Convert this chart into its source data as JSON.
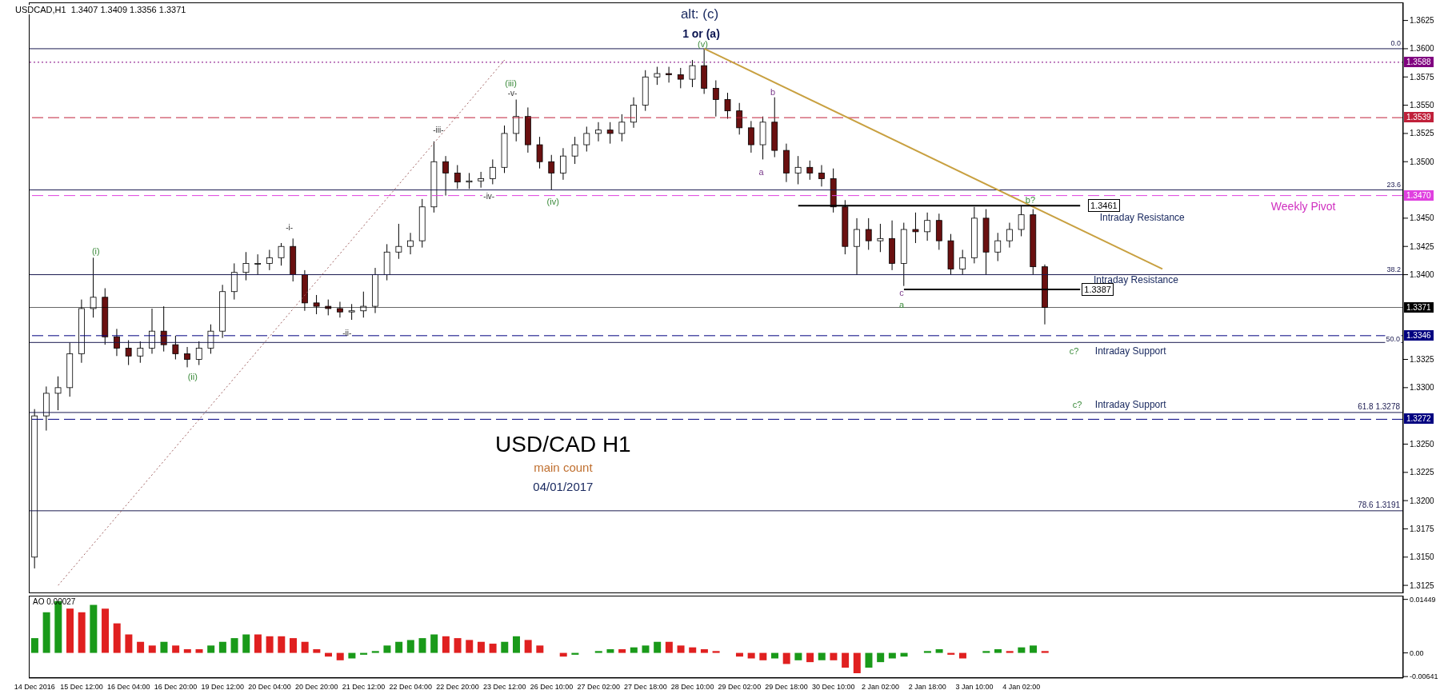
{
  "chart_data": [
    {
      "type": "candlestick",
      "title": "USD/CAD H1",
      "subtitle": "main count",
      "categories": [
        null,
        null,
        null,
        null,
        null,
        null,
        null,
        null,
        null,
        null,
        null,
        null,
        null,
        null,
        null,
        null,
        null,
        null,
        null,
        null,
        null,
        null,
        null,
        null,
        null,
        null,
        null,
        null,
        null,
        null,
        null,
        null,
        null,
        null,
        null,
        null,
        null,
        null,
        null,
        null,
        null,
        null,
        null,
        null,
        null,
        null,
        null,
        null,
        null,
        null,
        null,
        null,
        null,
        null,
        null,
        null,
        null,
        null,
        null,
        null,
        null,
        null,
        null,
        null,
        null,
        null,
        null,
        null,
        null,
        null,
        null,
        null,
        null,
        null,
        null,
        null,
        null,
        null,
        null,
        null,
        null,
        null,
        null,
        null,
        null,
        null,
        null,
        null,
        null,
        null,
        null,
        null,
        null,
        null,
        null,
        null,
        null,
        null,
        null,
        null,
        null,
        null,
        null,
        null,
        null,
        null,
        null,
        null,
        null,
        null,
        null,
        null,
        null,
        null,
        null,
        null,
        null
      ],
      "ohlc": [
        [
          1.315,
          1.3281,
          1.314,
          1.3275
        ],
        [
          1.3275,
          1.3301,
          1.3262,
          1.3295
        ],
        [
          1.3295,
          1.331,
          1.328,
          1.33
        ],
        [
          1.33,
          1.334,
          1.3292,
          1.333
        ],
        [
          1.333,
          1.3378,
          1.3322,
          1.337
        ],
        [
          1.337,
          1.3415,
          1.3362,
          1.338
        ],
        [
          1.338,
          1.3388,
          1.3338,
          1.3345
        ],
        [
          1.3345,
          1.3352,
          1.3328,
          1.3335
        ],
        [
          1.3335,
          1.3342,
          1.332,
          1.3328
        ],
        [
          1.3328,
          1.3341,
          1.3322,
          1.3335
        ],
        [
          1.3335,
          1.337,
          1.333,
          1.335
        ],
        [
          1.335,
          1.3372,
          1.3332,
          1.3338
        ],
        [
          1.3338,
          1.3346,
          1.3325,
          1.333
        ],
        [
          1.333,
          1.3336,
          1.3318,
          1.3325
        ],
        [
          1.3325,
          1.3341,
          1.332,
          1.3335
        ],
        [
          1.3335,
          1.3356,
          1.333,
          1.335
        ],
        [
          1.335,
          1.3391,
          1.3344,
          1.3385
        ],
        [
          1.3385,
          1.341,
          1.3378,
          1.3402
        ],
        [
          1.3402,
          1.342,
          1.3395,
          1.341
        ],
        [
          1.341,
          1.3418,
          1.34,
          1.341
        ],
        [
          1.341,
          1.3422,
          1.3404,
          1.3415
        ],
        [
          1.3415,
          1.3428,
          1.3408,
          1.3425
        ],
        [
          1.3425,
          1.3432,
          1.3394,
          1.34
        ],
        [
          1.34,
          1.3404,
          1.3368,
          1.3375
        ],
        [
          1.3375,
          1.3382,
          1.3365,
          1.3372
        ],
        [
          1.3372,
          1.3378,
          1.3364,
          1.337
        ],
        [
          1.337,
          1.3376,
          1.3362,
          1.3367
        ],
        [
          1.3367,
          1.3374,
          1.336,
          1.3368
        ],
        [
          1.3368,
          1.3385,
          1.3362,
          1.3372
        ],
        [
          1.3372,
          1.3406,
          1.3366,
          1.34
        ],
        [
          1.34,
          1.3427,
          1.3395,
          1.342
        ],
        [
          1.342,
          1.3445,
          1.3414,
          1.3425
        ],
        [
          1.3425,
          1.3437,
          1.3418,
          1.343
        ],
        [
          1.343,
          1.3467,
          1.3424,
          1.346
        ],
        [
          1.346,
          1.3518,
          1.3455,
          1.35
        ],
        [
          1.35,
          1.3505,
          1.347,
          1.349
        ],
        [
          1.349,
          1.3497,
          1.3476,
          1.3482
        ],
        [
          1.3482,
          1.349,
          1.3476,
          1.3483
        ],
        [
          1.3483,
          1.3491,
          1.3477,
          1.3485
        ],
        [
          1.3485,
          1.3502,
          1.348,
          1.3495
        ],
        [
          1.3495,
          1.3532,
          1.349,
          1.3525
        ],
        [
          1.3525,
          1.3555,
          1.3518,
          1.354
        ],
        [
          1.354,
          1.3548,
          1.3508,
          1.3515
        ],
        [
          1.3515,
          1.3522,
          1.3494,
          1.35
        ],
        [
          1.35,
          1.3506,
          1.3475,
          1.349
        ],
        [
          1.349,
          1.3512,
          1.3484,
          1.3505
        ],
        [
          1.3505,
          1.3522,
          1.3498,
          1.3515
        ],
        [
          1.3515,
          1.3531,
          1.3509,
          1.3525
        ],
        [
          1.3525,
          1.3535,
          1.3518,
          1.3528
        ],
        [
          1.3528,
          1.3535,
          1.3516,
          1.3525
        ],
        [
          1.3525,
          1.3542,
          1.3518,
          1.3535
        ],
        [
          1.3535,
          1.3557,
          1.353,
          1.355
        ],
        [
          1.355,
          1.3581,
          1.3545,
          1.3575
        ],
        [
          1.3575,
          1.3584,
          1.3568,
          1.3578
        ],
        [
          1.3578,
          1.3584,
          1.357,
          1.3577
        ],
        [
          1.3577,
          1.3583,
          1.3565,
          1.3573
        ],
        [
          1.3573,
          1.359,
          1.3566,
          1.3585
        ],
        [
          1.3585,
          1.36,
          1.356,
          1.3565
        ],
        [
          1.3565,
          1.3572,
          1.354,
          1.3555
        ],
        [
          1.3555,
          1.3561,
          1.3538,
          1.3545
        ],
        [
          1.3545,
          1.3552,
          1.3524,
          1.353
        ],
        [
          1.353,
          1.3536,
          1.3508,
          1.3515
        ],
        [
          1.3515,
          1.354,
          1.3502,
          1.3535
        ],
        [
          1.3535,
          1.3557,
          1.3504,
          1.351
        ],
        [
          1.351,
          1.3516,
          1.3482,
          1.349
        ],
        [
          1.349,
          1.3505,
          1.348,
          1.3495
        ],
        [
          1.3495,
          1.3501,
          1.3484,
          1.349
        ],
        [
          1.349,
          1.3497,
          1.3478,
          1.3485
        ],
        [
          1.3485,
          1.3494,
          1.3455,
          1.346
        ],
        [
          1.346,
          1.3466,
          1.3418,
          1.3425
        ],
        [
          1.3425,
          1.345,
          1.34,
          1.344
        ],
        [
          1.344,
          1.345,
          1.3422,
          1.343
        ],
        [
          1.343,
          1.3445,
          1.342,
          1.3432
        ],
        [
          1.3432,
          1.3448,
          1.3404,
          1.341
        ],
        [
          1.341,
          1.3446,
          1.339,
          1.344
        ],
        [
          1.344,
          1.3455,
          1.3428,
          1.3438
        ],
        [
          1.3438,
          1.3455,
          1.343,
          1.3448
        ],
        [
          1.3448,
          1.3454,
          1.3422,
          1.343
        ],
        [
          1.343,
          1.3436,
          1.34,
          1.3405
        ],
        [
          1.3405,
          1.3422,
          1.34,
          1.3415
        ],
        [
          1.3415,
          1.346,
          1.341,
          1.345
        ],
        [
          1.345,
          1.3458,
          1.34,
          1.342
        ],
        [
          1.342,
          1.3437,
          1.3412,
          1.343
        ],
        [
          1.343,
          1.3446,
          1.3424,
          1.344
        ],
        [
          1.344,
          1.3461,
          1.3434,
          1.3453
        ],
        [
          1.3453,
          1.3458,
          1.34,
          1.3407
        ],
        [
          1.3407,
          1.3409,
          1.3356,
          1.3371
        ],
        null,
        null,
        null,
        null,
        null,
        null,
        null,
        null,
        null,
        null,
        null,
        null,
        null,
        null,
        null,
        null,
        null,
        null,
        null,
        null,
        null,
        null,
        null,
        null,
        null,
        null,
        null,
        null,
        null,
        null
      ],
      "series": [
        {
          "type": "line",
          "color": "#c8a040",
          "line_style": "solid",
          "values": [
            null,
            null,
            null,
            null,
            null,
            null,
            null,
            null,
            null,
            null,
            null,
            null,
            null,
            null,
            null,
            null,
            null,
            null,
            null,
            null,
            null,
            null,
            null,
            null,
            null,
            null,
            null,
            null,
            null,
            null,
            null,
            null,
            null,
            null,
            null,
            null,
            null,
            null,
            null,
            null,
            null,
            null,
            null,
            null,
            null,
            null,
            null,
            null,
            null,
            null,
            null,
            null,
            null,
            null,
            null,
            null,
            null,
            1.36,
            null,
            null,
            null,
            null,
            null,
            null,
            null,
            null,
            null,
            null,
            null,
            null,
            null,
            null,
            null,
            null,
            null,
            null,
            null,
            null,
            null,
            null,
            null,
            null,
            null,
            null,
            null,
            null,
            null,
            null,
            null,
            null,
            null,
            null,
            null,
            null,
            null,
            null,
            1.3405,
            null,
            null,
            null,
            null,
            null,
            null,
            null,
            null,
            null,
            null,
            null,
            null,
            null,
            null,
            null,
            null,
            null,
            null,
            null,
            null
          ]
        },
        {
          "type": "line",
          "color": "#a06060",
          "line_style": "dotted",
          "values": [
            null,
            null,
            1.3125,
            null,
            null,
            null,
            null,
            null,
            null,
            null,
            null,
            null,
            null,
            null,
            null,
            null,
            null,
            null,
            null,
            null,
            null,
            null,
            null,
            null,
            null,
            null,
            null,
            null,
            null,
            null,
            null,
            null,
            null,
            null,
            null,
            null,
            null,
            null,
            null,
            null,
            1.359,
            null,
            null,
            null,
            null,
            null,
            null,
            null,
            null,
            null,
            null,
            null,
            null,
            null,
            null,
            null,
            null,
            null,
            null,
            null,
            null,
            null,
            null,
            null,
            null,
            null,
            null,
            null,
            null,
            null,
            null,
            null,
            null,
            null,
            null,
            null,
            null,
            null,
            null,
            null,
            null,
            null,
            null,
            null,
            null,
            null,
            null,
            null,
            null,
            null,
            null,
            null,
            null,
            null,
            null,
            null,
            null,
            null,
            null,
            null,
            null,
            null,
            null,
            null,
            null,
            null,
            null,
            null,
            null,
            null,
            null,
            null,
            null,
            null,
            null,
            null,
            null
          ]
        },
        {
          "type": "line",
          "color": "#000000",
          "line_style": "solid",
          "values": [
            null,
            null,
            null,
            null,
            null,
            null,
            null,
            null,
            null,
            null,
            null,
            null,
            null,
            null,
            null,
            null,
            null,
            null,
            null,
            null,
            null,
            null,
            null,
            null,
            null,
            null,
            null,
            null,
            null,
            null,
            null,
            null,
            null,
            null,
            null,
            null,
            null,
            null,
            null,
            null,
            null,
            null,
            null,
            null,
            null,
            null,
            null,
            null,
            null,
            null,
            null,
            null,
            null,
            null,
            null,
            null,
            null,
            null,
            null,
            null,
            null,
            null,
            null,
            null,
            null,
            1.3461,
            null,
            null,
            null,
            null,
            null,
            null,
            null,
            null,
            null,
            null,
            null,
            null,
            null,
            null,
            null,
            null,
            null,
            null,
            null,
            null,
            null,
            null,
            null,
            1.3461,
            null,
            null,
            null,
            null,
            null,
            null,
            null,
            null,
            null,
            null,
            null,
            null,
            null,
            null,
            null,
            null,
            null,
            null,
            null,
            null,
            null,
            null,
            null,
            null,
            null,
            null,
            null
          ]
        },
        {
          "type": "line",
          "color": "#000000",
          "line_style": "solid",
          "values": [
            null,
            null,
            null,
            null,
            null,
            null,
            null,
            null,
            null,
            null,
            null,
            null,
            null,
            null,
            null,
            null,
            null,
            null,
            null,
            null,
            null,
            null,
            null,
            null,
            null,
            null,
            null,
            null,
            null,
            null,
            null,
            null,
            null,
            null,
            null,
            null,
            null,
            null,
            null,
            null,
            null,
            null,
            null,
            null,
            null,
            null,
            null,
            null,
            null,
            null,
            null,
            null,
            null,
            null,
            null,
            null,
            null,
            null,
            null,
            null,
            null,
            null,
            null,
            null,
            null,
            null,
            null,
            null,
            null,
            null,
            null,
            null,
            null,
            null,
            1.3387,
            null,
            null,
            null,
            null,
            null,
            null,
            null,
            null,
            null,
            null,
            null,
            null,
            null,
            null,
            1.3387,
            null,
            null,
            null,
            null,
            null,
            null,
            null,
            null,
            null,
            null,
            null,
            null,
            null,
            null,
            null,
            null,
            null,
            null,
            null,
            null,
            null,
            null,
            null,
            null,
            null,
            null,
            null
          ]
        }
      ],
      "ylim": [
        1.3118,
        1.3641
      ],
      "yticks": [
        1.3125,
        {
          "value": 1.315,
          "label": "1.3150"
        },
        1.3175,
        {
          "value": 1.32,
          "label": "1.3200"
        },
        1.3225,
        {
          "value": 1.325,
          "label": "1.3250"
        },
        {
          "value": 1.33,
          "label": "1.3300"
        },
        1.3325,
        {
          "value": 1.34,
          "label": "1.3400"
        },
        1.3425,
        {
          "value": 1.345,
          "label": "1.3450"
        },
        {
          "value": 1.35,
          "label": "1.3500"
        },
        1.3525,
        {
          "value": 1.355,
          "label": "1.3550"
        },
        1.3575,
        {
          "value": 1.36,
          "label": "1.3600"
        },
        1.3625
      ],
      "tick_labels": "y",
      "ref_lines": [
        {
          "axis": "y",
          "value": 1.36
        },
        {
          "axis": "y",
          "value": 1.3588,
          "label": "1.3588",
          "color": "#800080",
          "line_style": "dotted"
        },
        {
          "axis": "y",
          "value": 1.3539,
          "label": "1.3539",
          "color": "#c0203a",
          "line_style": "dashed"
        },
        {
          "axis": "y",
          "value": 1.3475
        },
        {
          "axis": "y",
          "value": 1.347,
          "label": "1.3470",
          "color": "#e040e0",
          "line_style": "dashed"
        },
        {
          "axis": "y",
          "value": 1.34
        },
        {
          "axis": "y",
          "value": 1.3371,
          "label": "1.3371",
          "color": "#000000",
          "line_style": "solid"
        },
        {
          "axis": "y",
          "value": 1.3346,
          "label": "1.3346",
          "color": "#000080",
          "line_style": "dashed"
        },
        {
          "axis": "y",
          "value": 1.334
        },
        {
          "axis": "y",
          "value": 1.3278,
          "label": "61.8 1.3278"
        },
        {
          "axis": "y",
          "value": 1.3272,
          "label": "1.3272",
          "color": "#000080",
          "line_style": "dashed"
        },
        {
          "axis": "y",
          "value": 1.3191,
          "label": "78.6 1.3191"
        }
      ],
      "annotations": [
        "USDCAD,H1  1.3407 1.3409 1.3356 1.3371",
        "alt: (c)",
        "1 or (a)",
        "(v)",
        "(iii)",
        "-v-",
        "-iii-",
        "-iv-",
        "(iv)",
        "-i-",
        "(i)",
        "(ii)",
        "-ii-",
        "b",
        "a",
        "b?",
        "c",
        "a",
        "c?",
        "c?",
        "Intraday Resistance",
        "Intraday Resistance",
        "Intraday Support",
        "Intraday Support",
        "Weekly Pivot",
        "04/01/2017",
        {
          "text": "1.3461",
          "y": 1.3461
        },
        {
          "text": "1.3387",
          "y": 1.3387
        },
        {
          "text": "0.0",
          "y": 1.36
        },
        {
          "text": "23.6",
          "y": 1.3475
        },
        {
          "text": "38.2",
          "y": 1.34
        },
        {
          "text": "50.0",
          "y": 1.334
        }
      ]
    },
    {
      "type": "bar",
      "title": "AO 0.00027",
      "categories": [
        "14 Dec 2016",
        null,
        null,
        null,
        "15 Dec 12:00",
        null,
        null,
        null,
        "16 Dec 04:00",
        null,
        null,
        null,
        "16 Dec 20:00",
        null,
        null,
        null,
        "19 Dec 12:00",
        null,
        null,
        null,
        "20 Dec 04:00",
        null,
        null,
        null,
        "20 Dec 20:00",
        null,
        null,
        null,
        "21 Dec 12:00",
        null,
        null,
        null,
        "22 Dec 04:00",
        null,
        null,
        null,
        "22 Dec 20:00",
        null,
        null,
        null,
        "23 Dec 12:00",
        null,
        null,
        null,
        "26 Dec 10:00",
        null,
        null,
        null,
        "27 Dec 02:00",
        null,
        null,
        null,
        "27 Dec 18:00",
        null,
        null,
        null,
        "28 Dec 10:00",
        null,
        null,
        null,
        "29 Dec 02:00",
        null,
        null,
        null,
        "29 Dec 18:00",
        null,
        null,
        null,
        "30 Dec 10:00",
        null,
        null,
        null,
        "2 Jan 02:00",
        null,
        null,
        null,
        "2 Jan 18:00",
        null,
        null,
        null,
        "3 Jan 10:00",
        null,
        null,
        null,
        "4 Jan 02:00",
        null,
        null,
        null,
        null,
        null,
        null,
        null,
        null,
        null,
        null,
        null,
        null,
        null,
        null,
        null,
        null,
        null,
        null,
        null,
        null,
        null,
        null,
        null,
        null,
        null,
        null,
        null,
        null,
        null,
        null,
        null,
        null
      ],
      "values": [
        0.004,
        0.011,
        0.014,
        0.012,
        0.011,
        0.013,
        0.012,
        0.008,
        0.005,
        0.003,
        0.002,
        0.003,
        0.002,
        0.001,
        0.001,
        0.002,
        0.003,
        0.004,
        0.005,
        0.005,
        0.0045,
        0.0045,
        0.004,
        0.003,
        0.001,
        -0.001,
        -0.002,
        -0.0015,
        -0.0005,
        0.0005,
        0.002,
        0.003,
        0.0035,
        0.004,
        0.005,
        0.0045,
        0.004,
        0.0035,
        0.003,
        0.0025,
        0.003,
        0.0045,
        0.0035,
        0.002,
        0,
        -0.001,
        -0.0005,
        0,
        0.0005,
        0.001,
        0.001,
        0.0015,
        0.002,
        0.003,
        0.003,
        0.002,
        0.0015,
        0.001,
        0.0005,
        0,
        -0.001,
        -0.0015,
        -0.002,
        -0.0015,
        -0.003,
        -0.002,
        -0.0025,
        -0.002,
        -0.002,
        -0.004,
        -0.0055,
        -0.004,
        -0.0025,
        -0.0015,
        -0.001,
        0,
        0.0005,
        0.001,
        -0.0005,
        -0.0015,
        0,
        0.0005,
        0.001,
        0.0005,
        0.0015,
        0.002,
        0.0005,
        null,
        null,
        null,
        null,
        null,
        null,
        null,
        null,
        null,
        null,
        null,
        null,
        null,
        null,
        null,
        null,
        null,
        null,
        null,
        null,
        null,
        null,
        null,
        null,
        null,
        null,
        null,
        null,
        null,
        null
      ],
      "colors": [
        "#1a9a1a",
        "#1a9a1a",
        "#1a9a1a",
        "#e02020",
        "#e02020",
        "#1a9a1a",
        "#e02020",
        "#e02020",
        "#e02020",
        "#e02020",
        "#e02020",
        "#1a9a1a",
        "#e02020",
        "#e02020",
        "#e02020",
        "#1a9a1a",
        "#1a9a1a",
        "#1a9a1a",
        "#1a9a1a",
        "#e02020",
        "#e02020",
        "#e02020",
        "#e02020",
        "#e02020",
        "#e02020",
        "#e02020",
        "#e02020",
        "#1a9a1a",
        "#1a9a1a",
        "#1a9a1a",
        "#1a9a1a",
        "#1a9a1a",
        "#1a9a1a",
        "#1a9a1a",
        "#1a9a1a",
        "#e02020",
        "#e02020",
        "#e02020",
        "#e02020",
        "#e02020",
        "#1a9a1a",
        "#1a9a1a",
        "#e02020",
        "#e02020",
        "#e02020",
        "#e02020",
        "#1a9a1a",
        "#1a9a1a",
        "#1a9a1a",
        "#1a9a1a",
        "#e02020",
        "#1a9a1a",
        "#1a9a1a",
        "#1a9a1a",
        "#e02020",
        "#e02020",
        "#e02020",
        "#e02020",
        "#e02020",
        "#e02020",
        "#e02020",
        "#e02020",
        "#e02020",
        "#1a9a1a",
        "#e02020",
        "#1a9a1a",
        "#e02020",
        "#1a9a1a",
        "#e02020",
        "#e02020",
        "#e02020",
        "#1a9a1a",
        "#1a9a1a",
        "#1a9a1a",
        "#1a9a1a",
        "#1a9a1a",
        "#1a9a1a",
        "#1a9a1a",
        "#e02020",
        "#e02020",
        "#1a9a1a",
        "#1a9a1a",
        "#1a9a1a",
        "#e02020",
        "#1a9a1a",
        "#1a9a1a",
        "#e02020",
        null,
        null,
        null,
        null,
        null,
        null,
        null,
        null,
        null,
        null,
        null,
        null,
        null,
        null,
        null,
        null,
        null,
        null,
        null,
        null,
        null,
        null,
        null,
        null,
        null,
        null,
        null,
        null,
        null,
        null
      ],
      "ylim": [
        -0.0068,
        0.0155
      ],
      "yticks": [
        {
          "value": -0.00641,
          "label": "-0.00641"
        },
        {
          "value": 0,
          "label": "0.00"
        },
        {
          "value": 0.01449,
          "label": "0.01449"
        }
      ]
    }
  ]
}
